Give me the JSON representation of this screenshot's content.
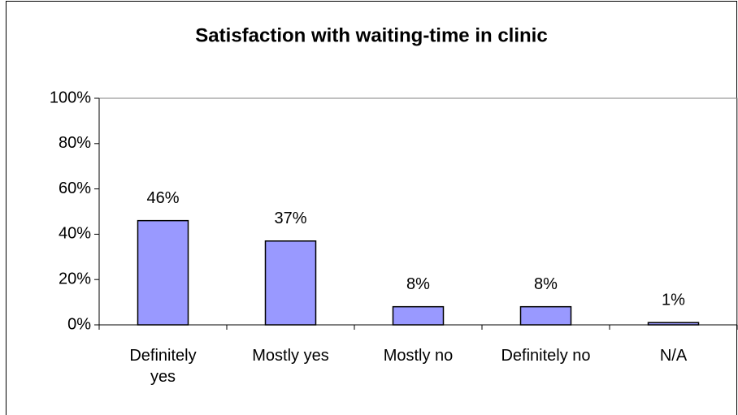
{
  "chart_data": {
    "type": "bar",
    "title": "Satisfaction with waiting-time in clinic",
    "categories": [
      "Definitely yes",
      "Mostly yes",
      "Mostly no",
      "Definitely no",
      "N/A"
    ],
    "values": [
      46,
      37,
      8,
      8,
      1
    ],
    "value_labels": [
      "46%",
      "37%",
      "8%",
      "8%",
      "1%"
    ],
    "color": "#9999ff",
    "ylim": [
      0,
      100
    ],
    "yticks": [
      {
        "value": 0,
        "label": "0%"
      },
      {
        "value": 20,
        "label": "20%"
      },
      {
        "value": 40,
        "label": "40%"
      },
      {
        "value": 60,
        "label": "60%"
      },
      {
        "value": 80,
        "label": "80%"
      },
      {
        "value": 100,
        "label": "100%"
      }
    ]
  }
}
